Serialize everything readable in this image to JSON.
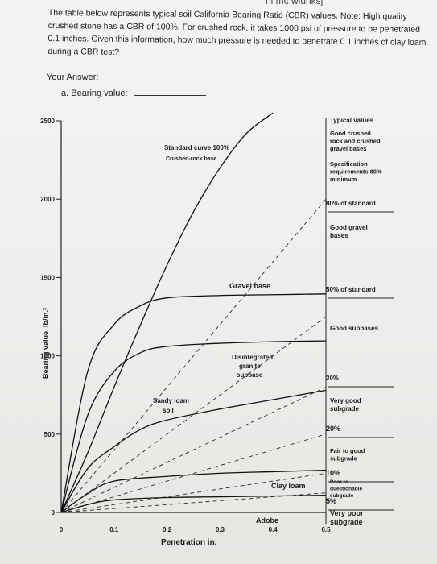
{
  "header_fragment": "ni mc wiunksj",
  "question": {
    "text": "The table below represents typical soil California Bearing Ratio (CBR) values. Note: High quality crushed stone has a CBR of 100%. For crushed rock, it takes 1000 psi of pressure to be penetrated 0.1 inches. Given this information, how much pressure is needed to penetrate 0.1 inches of clay loam during a CBR test?"
  },
  "answer": {
    "heading": "Your Answer:",
    "item_label": "a.  Bearing value:",
    "value": ""
  },
  "chart_data": {
    "type": "line",
    "xlabel": "Penetration in.",
    "ylabel": "Bearing value, lb/in.²",
    "xlim": [
      0,
      0.5
    ],
    "ylim": [
      0,
      2500
    ],
    "x_ticks": [
      "0",
      "0.1",
      "0.2",
      "0.3",
      "0.4",
      "0.5"
    ],
    "y_ticks": [
      "0",
      "500",
      "1000",
      "1500",
      "2000",
      "2500"
    ],
    "series": [
      {
        "name": "Standard curve 100% Crushed-rock base",
        "x": [
          0,
          0.05,
          0.1,
          0.15,
          0.2,
          0.25,
          0.3,
          0.35,
          0.4
        ],
        "y": [
          0,
          380,
          800,
          1200,
          1580,
          1920,
          2200,
          2420,
          2550
        ]
      },
      {
        "name": "Gravel base",
        "x": [
          0,
          0.05,
          0.1,
          0.15,
          0.2,
          0.3,
          0.4,
          0.5
        ],
        "y": [
          0,
          900,
          1200,
          1320,
          1370,
          1385,
          1390,
          1395
        ]
      },
      {
        "name": "Disintegrated granite subbase",
        "x": [
          0,
          0.05,
          0.1,
          0.15,
          0.2,
          0.3,
          0.4,
          0.5
        ],
        "y": [
          0,
          620,
          900,
          1020,
          1060,
          1080,
          1090,
          1095
        ]
      },
      {
        "name": "Sandy loam soil",
        "x": [
          0,
          0.05,
          0.1,
          0.15,
          0.2,
          0.3,
          0.4,
          0.5
        ],
        "y": [
          0,
          280,
          420,
          530,
          590,
          660,
          720,
          780
        ]
      },
      {
        "name": "Clay loam",
        "x": [
          0,
          0.05,
          0.1,
          0.2,
          0.3,
          0.4,
          0.5
        ],
        "y": [
          0,
          120,
          200,
          230,
          250,
          260,
          270
        ]
      },
      {
        "name": "Adobe",
        "x": [
          0,
          0.05,
          0.1,
          0.2,
          0.3,
          0.4,
          0.5
        ],
        "y": [
          0,
          50,
          80,
          95,
          100,
          105,
          110
        ]
      }
    ],
    "reference_lines": [
      {
        "label": "80%",
        "x": [
          0,
          0.5
        ],
        "y": [
          0,
          2000
        ]
      },
      {
        "label": "50%",
        "x": [
          0,
          0.5
        ],
        "y": [
          0,
          1250
        ]
      },
      {
        "label": "30%",
        "x": [
          0,
          0.5
        ],
        "y": [
          0,
          800
        ]
      },
      {
        "label": "20%",
        "x": [
          0,
          0.5
        ],
        "y": [
          0,
          500
        ]
      },
      {
        "label": "10%",
        "x": [
          0,
          0.5
        ],
        "y": [
          0,
          250
        ]
      },
      {
        "label": "5%",
        "x": [
          0,
          0.5
        ],
        "y": [
          0,
          125
        ]
      }
    ],
    "right_annotations": {
      "heading": "Typical values",
      "items": [
        "Good crushed rock and crushed gravel bases",
        "Specification requirements 80% minimum",
        "80% of standard",
        "Good gravel bases",
        "50% of standard",
        "Good subbases",
        "30%",
        "Very good subgrade",
        "20%",
        "Fair to good subgrade",
        "10%",
        "Poor to questionable subgrade",
        "5%",
        "Very poor subgrade"
      ]
    },
    "curve_labels": {
      "standard_line1": "Standard curve 100%",
      "standard_line2": "Crushed-rock base",
      "gravel": "Gravel base",
      "dg_line1": "Disintegrated",
      "dg_line2": "granite",
      "dg_line3": "subbase",
      "sandy_line1": "Sandy loam",
      "sandy_line2": "soil",
      "clay": "Clay loam",
      "adobe": "Adobe"
    }
  }
}
